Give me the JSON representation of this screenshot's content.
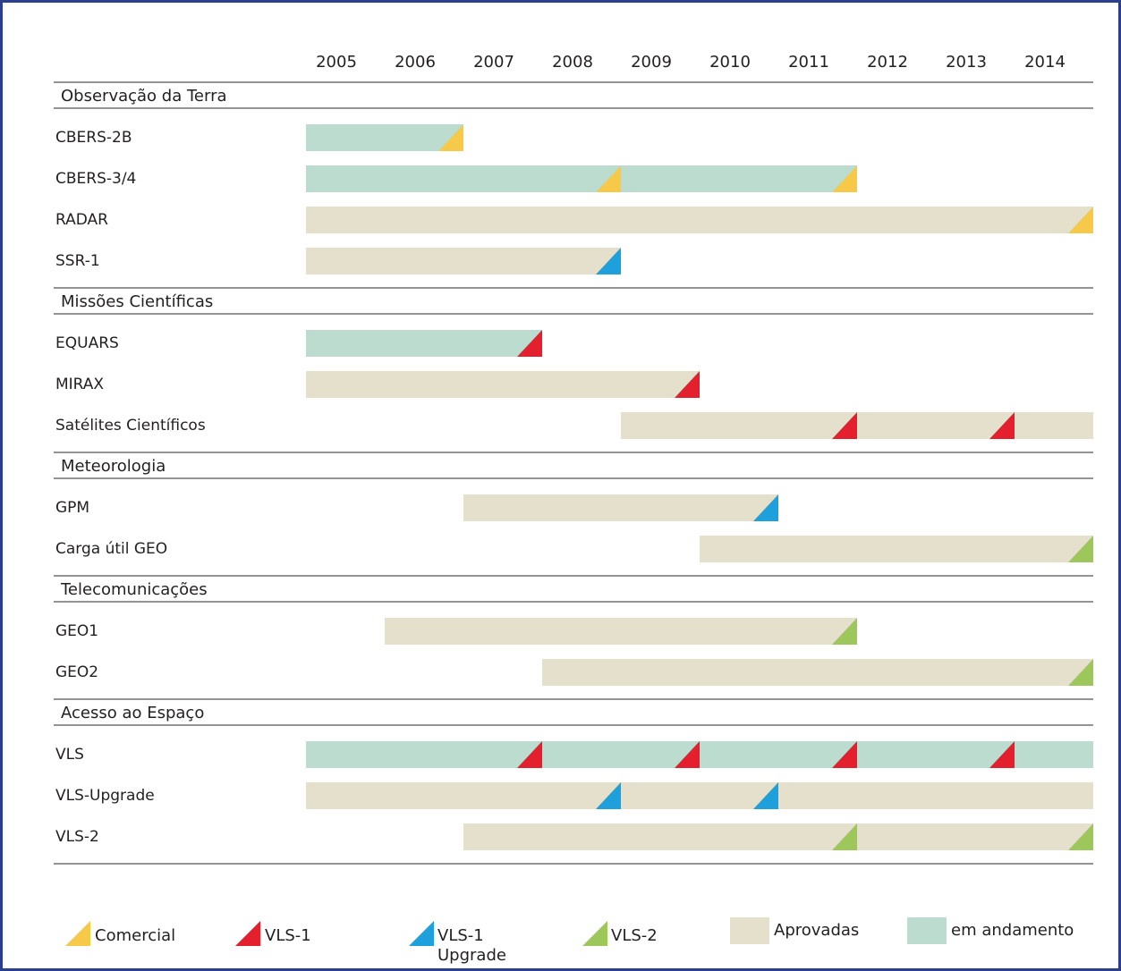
{
  "chart_data": {
    "type": "gantt",
    "categories": [
      "2005",
      "2006",
      "2007",
      "2008",
      "2009",
      "2010",
      "2011",
      "2012",
      "2013",
      "2014"
    ],
    "xlim": [
      2005,
      2015
    ],
    "groups": [
      {
        "name": "Observação da Terra",
        "rows": [
          {
            "name": "CBERS-2B",
            "kind": "em andamento",
            "start": 2005,
            "end": 2007,
            "launches": [
              {
                "x": 2007,
                "vehicle": "Comercial"
              }
            ]
          },
          {
            "name": "CBERS-3/4",
            "kind": "em andamento",
            "start": 2005,
            "end": 2012,
            "launches": [
              {
                "x": 2009,
                "vehicle": "Comercial"
              },
              {
                "x": 2012,
                "vehicle": "Comercial"
              }
            ]
          },
          {
            "name": "RADAR",
            "kind": "Aprovadas",
            "start": 2005,
            "end": 2015,
            "launches": [
              {
                "x": 2015,
                "vehicle": "Comercial"
              }
            ]
          },
          {
            "name": "SSR-1",
            "kind": "Aprovadas",
            "start": 2005,
            "end": 2009,
            "launches": [
              {
                "x": 2009,
                "vehicle": "VLS-1 Upgrade"
              }
            ]
          }
        ]
      },
      {
        "name": "Missões Científicas",
        "rows": [
          {
            "name": "EQUARS",
            "kind": "em andamento",
            "start": 2005,
            "end": 2008,
            "launches": [
              {
                "x": 2008,
                "vehicle": "VLS-1"
              }
            ]
          },
          {
            "name": "MIRAX",
            "kind": "Aprovadas",
            "start": 2005,
            "end": 2010,
            "launches": [
              {
                "x": 2010,
                "vehicle": "VLS-1"
              }
            ]
          },
          {
            "name": "Satélites Científicos",
            "kind": "Aprovadas",
            "start": 2009,
            "end": 2015,
            "launches": [
              {
                "x": 2012,
                "vehicle": "VLS-1"
              },
              {
                "x": 2014,
                "vehicle": "VLS-1"
              }
            ]
          }
        ]
      },
      {
        "name": "Meteorologia",
        "rows": [
          {
            "name": "GPM",
            "kind": "Aprovadas",
            "start": 2007,
            "end": 2011,
            "launches": [
              {
                "x": 2011,
                "vehicle": "VLS-1 Upgrade"
              }
            ]
          },
          {
            "name": "Carga útil GEO",
            "kind": "Aprovadas",
            "start": 2010,
            "end": 2015,
            "launches": [
              {
                "x": 2015,
                "vehicle": "VLS-2"
              }
            ]
          }
        ]
      },
      {
        "name": "Telecomunicações",
        "rows": [
          {
            "name": "GEO1",
            "kind": "Aprovadas",
            "start": 2006,
            "end": 2012,
            "launches": [
              {
                "x": 2012,
                "vehicle": "VLS-2"
              }
            ]
          },
          {
            "name": "GEO2",
            "kind": "Aprovadas",
            "start": 2008,
            "end": 2015,
            "launches": [
              {
                "x": 2015,
                "vehicle": "VLS-2"
              }
            ]
          }
        ]
      },
      {
        "name": "Acesso ao Espaço",
        "rows": [
          {
            "name": "VLS",
            "kind": "em andamento",
            "start": 2005,
            "end": 2015,
            "launches": [
              {
                "x": 2008,
                "vehicle": "VLS-1"
              },
              {
                "x": 2010,
                "vehicle": "VLS-1"
              },
              {
                "x": 2012,
                "vehicle": "VLS-1"
              },
              {
                "x": 2014,
                "vehicle": "VLS-1"
              }
            ]
          },
          {
            "name": "VLS-Upgrade",
            "kind": "Aprovadas",
            "start": 2005,
            "end": 2015,
            "launches": [
              {
                "x": 2009,
                "vehicle": "VLS-1 Upgrade"
              },
              {
                "x": 2011,
                "vehicle": "VLS-1 Upgrade"
              }
            ]
          },
          {
            "name": "VLS-2",
            "kind": "Aprovadas",
            "start": 2007,
            "end": 2015,
            "launches": [
              {
                "x": 2012,
                "vehicle": "VLS-2"
              },
              {
                "x": 2015,
                "vehicle": "VLS-2"
              }
            ]
          }
        ]
      }
    ],
    "legend": [
      {
        "name": "Comercial",
        "color": "#f7c948",
        "shape": "triangle"
      },
      {
        "name": "VLS-1",
        "color": "#e4202e",
        "shape": "triangle"
      },
      {
        "name": "VLS-1 Upgrade",
        "color": "#1ea0dc",
        "shape": "triangle"
      },
      {
        "name": "VLS-2",
        "color": "#9dc75a",
        "shape": "triangle"
      },
      {
        "name": "Aprovadas",
        "color": "#e4e0cb",
        "shape": "box"
      },
      {
        "name": "em andamento",
        "color": "#bcdccf",
        "shape": "box"
      }
    ]
  }
}
